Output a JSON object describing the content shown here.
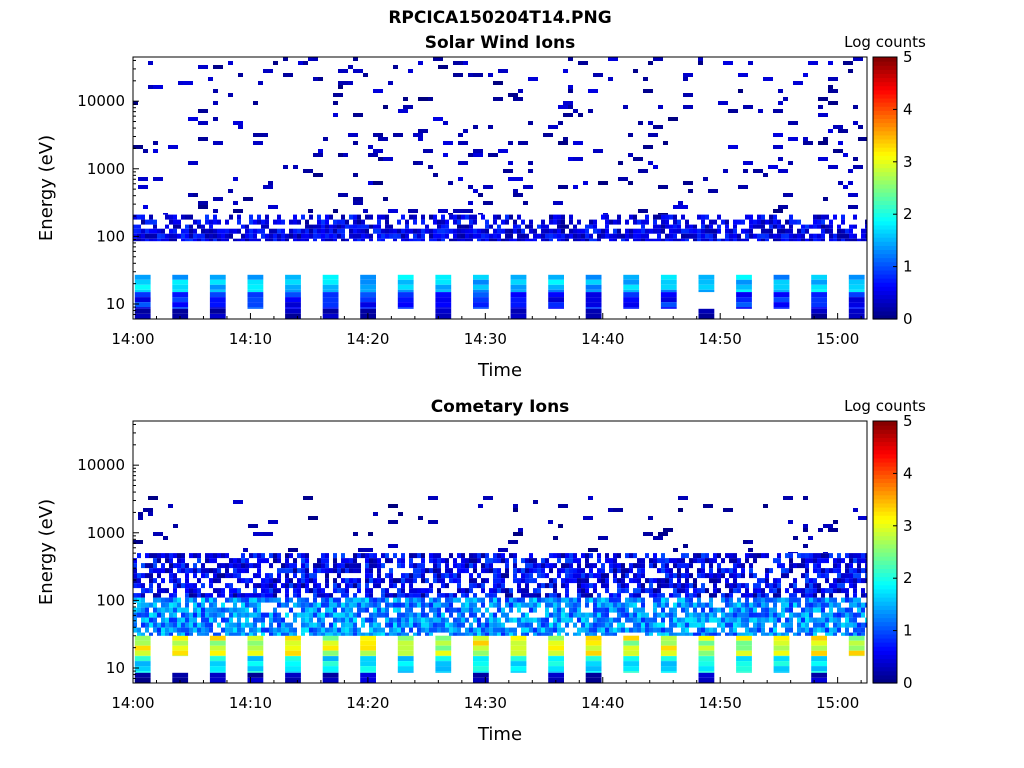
{
  "figure_title": "RPCICA150204T14.PNG",
  "chart_data": [
    {
      "type": "heatmap",
      "title": "Solar Wind Ions",
      "xlabel": "Time",
      "ylabel": "Energy (eV)",
      "x_ticks": [
        "14:00",
        "14:10",
        "14:20",
        "14:30",
        "14:40",
        "14:50",
        "15:00"
      ],
      "x_range_minutes": [
        0,
        62.5
      ],
      "y_ticks": [
        "10",
        "100",
        "1000",
        "10000"
      ],
      "y_tick_values": [
        10,
        100,
        1000,
        10000
      ],
      "ylim": [
        6,
        45000
      ],
      "y_scale": "log",
      "colorbar": {
        "label": "Log counts",
        "ticks": [
          "0",
          "1",
          "2",
          "3",
          "4",
          "5"
        ],
        "range": [
          0,
          5
        ],
        "colormap": "jet"
      },
      "scan_period_minutes": 3.2,
      "bands": [
        {
          "e_low": 15,
          "e_high": 27,
          "logc_range": [
            1.2,
            1.9
          ],
          "coverage": 0.95,
          "style": "scan"
        },
        {
          "e_low": 8.5,
          "e_high": 15,
          "logc_range": [
            0.4,
            1.1
          ],
          "coverage": 0.95,
          "style": "scan"
        },
        {
          "e_low": 6,
          "e_high": 8.5,
          "logc_range": [
            0.0,
            0.4
          ],
          "coverage": 0.6,
          "style": "scan"
        },
        {
          "e_low": 85,
          "e_high": 130,
          "logc_range": [
            0.15,
            0.9
          ],
          "coverage": 0.85,
          "style": "dense"
        },
        {
          "e_low": 130,
          "e_high": 210,
          "logc_range": [
            0.1,
            0.9
          ],
          "coverage": 0.55,
          "style": "dense"
        },
        {
          "e_low": 210,
          "e_high": 45000,
          "logc_range": [
            0.0,
            0.5
          ],
          "coverage": 0.05,
          "style": "sparse"
        }
      ]
    },
    {
      "type": "heatmap",
      "title": "Cometary Ions",
      "xlabel": "Time",
      "ylabel": "Energy (eV)",
      "x_ticks": [
        "14:00",
        "14:10",
        "14:20",
        "14:30",
        "14:40",
        "14:50",
        "15:00"
      ],
      "x_range_minutes": [
        0,
        62.5
      ],
      "y_ticks": [
        "10",
        "100",
        "1000",
        "10000"
      ],
      "y_tick_values": [
        10,
        100,
        1000,
        10000
      ],
      "ylim": [
        6,
        45000
      ],
      "y_scale": "log",
      "colorbar": {
        "label": "Log counts",
        "ticks": [
          "0",
          "1",
          "2",
          "3",
          "4",
          "5"
        ],
        "range": [
          0,
          5
        ],
        "colormap": "jet"
      },
      "scan_period_minutes": 3.2,
      "bands": [
        {
          "e_low": 15,
          "e_high": 30,
          "logc_range": [
            2.4,
            3.4
          ],
          "coverage": 0.95,
          "style": "scan"
        },
        {
          "e_low": 8.5,
          "e_high": 15,
          "logc_range": [
            1.5,
            2.1
          ],
          "coverage": 0.95,
          "style": "scan"
        },
        {
          "e_low": 6,
          "e_high": 8.5,
          "logc_range": [
            0.0,
            0.5
          ],
          "coverage": 0.5,
          "style": "scan"
        },
        {
          "e_low": 30,
          "e_high": 110,
          "logc_range": [
            0.8,
            1.8
          ],
          "coverage": 0.8,
          "style": "dense"
        },
        {
          "e_low": 110,
          "e_high": 500,
          "logc_range": [
            0.1,
            1.0
          ],
          "coverage": 0.65,
          "style": "dense"
        },
        {
          "e_low": 500,
          "e_high": 3500,
          "logc_range": [
            0.0,
            0.4
          ],
          "coverage": 0.04,
          "style": "sparse"
        }
      ]
    }
  ]
}
